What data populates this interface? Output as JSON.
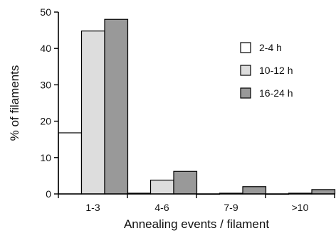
{
  "chart_data": {
    "type": "bar",
    "categories": [
      "1-3",
      "4-6",
      "7-9",
      ">10"
    ],
    "series": [
      {
        "name": "2-4 h",
        "color": "#ffffff",
        "values": [
          16.8,
          0.2,
          0.0,
          0.0
        ]
      },
      {
        "name": "10-12 h",
        "color": "#dddddd",
        "values": [
          44.8,
          3.8,
          0.2,
          0.2
        ]
      },
      {
        "name": "16-24 h",
        "color": "#999999",
        "values": [
          48.0,
          6.2,
          2.0,
          1.2
        ]
      }
    ],
    "xlabel": "Annealing events / filament",
    "ylabel": "% of filaments",
    "ylim": [
      0,
      50
    ],
    "yticks": [
      0,
      10,
      20,
      30,
      40,
      50
    ],
    "grid": false,
    "legend_position": "top-right"
  }
}
